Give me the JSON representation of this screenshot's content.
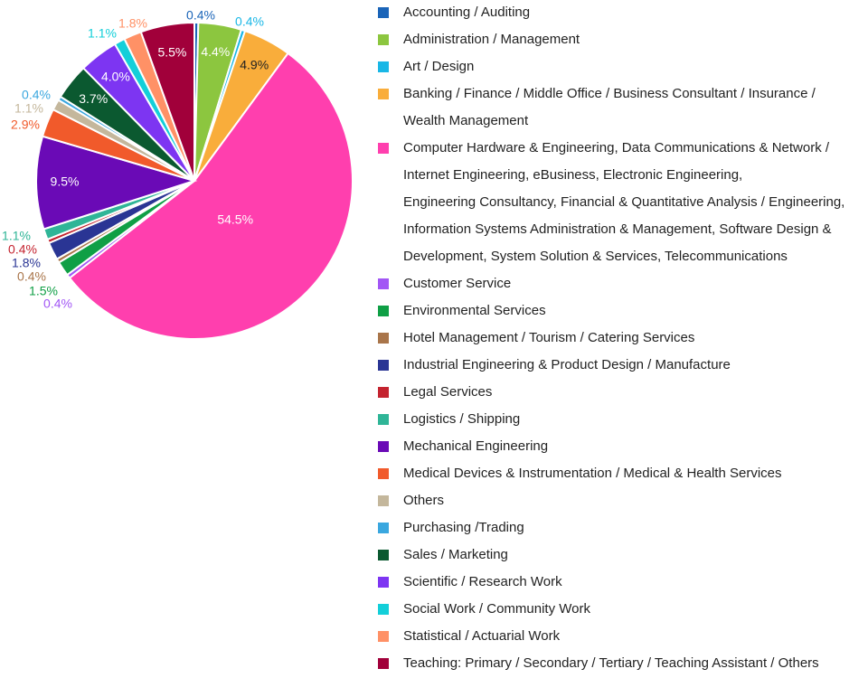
{
  "chart_data": {
    "type": "pie",
    "title": "",
    "legend_position": "right",
    "slices": [
      {
        "label": "Accounting / Auditing",
        "value": 0.4,
        "display": "0.4%",
        "color": "#1a64b8"
      },
      {
        "label": "Administration / Management",
        "value": 4.4,
        "display": "4.4%",
        "color": "#8cc63f"
      },
      {
        "label": "Art / Design",
        "value": 0.4,
        "display": "0.4%",
        "color": "#19b7e6"
      },
      {
        "label": "Banking / Finance / Middle Office / Business Consultant / Insurance / Wealth Management",
        "value": 4.9,
        "display": "4.9%",
        "color": "#f9ad3b"
      },
      {
        "label": "Computer Hardware & Engineering, Data Communications & Network / Internet Engineering, eBusiness, Electronic Engineering, Engineering Consultancy, Financial & Quantitative Analysis / Engineering, Information Systems Administration & Management, Software Design & Development, System Solution & Services, Telecommunications",
        "value": 54.5,
        "display": "54.5%",
        "color": "#ff3fae"
      },
      {
        "label": "Customer Service",
        "value": 0.4,
        "display": "0.4%",
        "color": "#a256f5"
      },
      {
        "label": "Environmental Services",
        "value": 1.5,
        "display": "1.5%",
        "color": "#0f9f45"
      },
      {
        "label": "Hotel Management / Tourism / Catering Services",
        "value": 0.4,
        "display": "0.4%",
        "color": "#a9754a"
      },
      {
        "label": "Industrial Engineering & Product Design / Manufacture",
        "value": 1.8,
        "display": "1.8%",
        "color": "#2a3594"
      },
      {
        "label": "Legal Services",
        "value": 0.4,
        "display": "0.4%",
        "color": "#c4232f"
      },
      {
        "label": "Logistics / Shipping",
        "value": 1.1,
        "display": "1.1%",
        "color": "#2fb597"
      },
      {
        "label": "Mechanical Engineering",
        "value": 9.5,
        "display": "9.5%",
        "color": "#6a0ab6"
      },
      {
        "label": "Medical Devices & Instrumentation / Medical & Health Services",
        "value": 2.9,
        "display": "2.9%",
        "color": "#f15a2b"
      },
      {
        "label": "Others",
        "value": 1.1,
        "display": "1.1%",
        "color": "#c4b79c"
      },
      {
        "label": "Purchasing /Trading",
        "value": 0.4,
        "display": "0.4%",
        "color": "#3aa7df"
      },
      {
        "label": "Sales / Marketing",
        "value": 3.7,
        "display": "3.7%",
        "color": "#0b5930"
      },
      {
        "label": "Scientific / Research Work",
        "value": 4.0,
        "display": "4.0%",
        "color": "#7d35f2"
      },
      {
        "label": "Social Work / Community Work",
        "value": 1.1,
        "display": "1.1%",
        "color": "#13cfd9"
      },
      {
        "label": "Statistical / Actuarial Work",
        "value": 1.8,
        "display": "1.8%",
        "color": "#ff9166"
      },
      {
        "label": "Teaching: Primary / Secondary / Tertiary / Teaching Assistant / Others",
        "value": 5.5,
        "display": "5.5%",
        "color": "#a1003a"
      }
    ]
  }
}
